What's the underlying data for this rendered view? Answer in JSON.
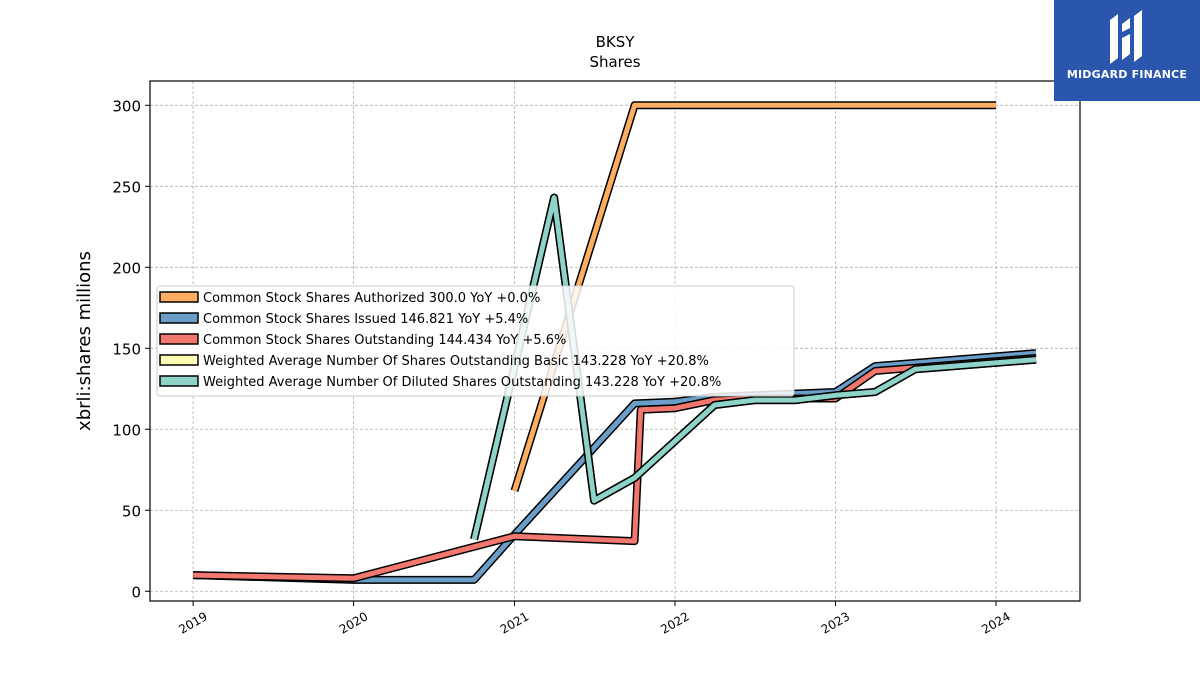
{
  "brand": {
    "name": "MIDGARD FINANCE",
    "color": "#2a57ad"
  },
  "chart_data": {
    "type": "line",
    "title": "BKSY",
    "subtitle": "Shares",
    "xlabel": "",
    "ylabel": "xbrli:shares millions",
    "x_ticks": [
      "2019",
      "2020",
      "2021",
      "2022",
      "2023",
      "2024"
    ],
    "y_ticks": [
      0,
      50,
      100,
      150,
      200,
      250,
      300
    ],
    "xlim": [
      "2018-09-25",
      "2024-07-10"
    ],
    "ylim": [
      -6,
      315
    ],
    "grid": true,
    "legend_position": "center-left",
    "series": [
      {
        "name": "Common Stock Shares Authorized",
        "legend_label": "Common Stock Shares Authorized  300.0 YoY +0.0%",
        "color": "#fdae61",
        "points": [
          [
            "2021-01-01",
            62
          ],
          [
            "2021-10-01",
            300
          ],
          [
            "2024-01-01",
            300
          ]
        ]
      },
      {
        "name": "Common Stock Shares Issued",
        "legend_label": "Common Stock Shares Issued  146.821 YoY +5.4%",
        "color": "#6a9ec9",
        "points": [
          [
            "2019-01-01",
            10
          ],
          [
            "2020-01-01",
            7
          ],
          [
            "2020-10-01",
            7
          ],
          [
            "2021-01-01",
            35
          ],
          [
            "2021-10-01",
            116
          ],
          [
            "2022-01-01",
            117
          ],
          [
            "2022-04-01",
            120
          ],
          [
            "2022-07-01",
            121
          ],
          [
            "2022-10-01",
            122
          ],
          [
            "2023-01-01",
            123
          ],
          [
            "2023-04-01",
            139
          ],
          [
            "2024-04-01",
            147
          ]
        ]
      },
      {
        "name": "Common Stock Shares Outstanding",
        "legend_label": "Common Stock Shares Outstanding  144.434 YoY +5.6%",
        "color": "#f2776e",
        "points": [
          [
            "2019-01-01",
            10
          ],
          [
            "2020-01-01",
            8
          ],
          [
            "2021-01-01",
            34
          ],
          [
            "2021-10-01",
            31
          ],
          [
            "2021-10-15",
            112
          ],
          [
            "2022-01-01",
            113
          ],
          [
            "2022-04-01",
            118
          ],
          [
            "2022-07-01",
            119
          ],
          [
            "2022-10-01",
            119
          ],
          [
            "2023-01-01",
            119
          ],
          [
            "2023-04-01",
            136
          ],
          [
            "2024-04-01",
            144
          ]
        ]
      },
      {
        "name": "Weighted Average Number Of Shares Outstanding Basic",
        "legend_label": "Weighted Average Number Of Shares Outstanding Basic  143.228 YoY +20.8%",
        "color": "#ffffb3",
        "points": [
          [
            "2020-10-01",
            32
          ],
          [
            "2021-04-01",
            243
          ],
          [
            "2021-07-01",
            56
          ],
          [
            "2021-10-01",
            70
          ],
          [
            "2022-04-01",
            115
          ],
          [
            "2022-07-01",
            118
          ],
          [
            "2022-10-01",
            118
          ],
          [
            "2023-01-01",
            121
          ],
          [
            "2023-04-01",
            123
          ],
          [
            "2023-07-01",
            137
          ],
          [
            "2024-04-01",
            143
          ]
        ]
      },
      {
        "name": "Weighted Average Number Of Diluted Shares Outstanding",
        "legend_label": "Weighted Average Number Of Diluted Shares Outstanding  143.228 YoY +20.8%",
        "color": "#8dd3c7",
        "points": [
          [
            "2020-10-01",
            32
          ],
          [
            "2021-04-01",
            243
          ],
          [
            "2021-07-01",
            56
          ],
          [
            "2021-10-01",
            70
          ],
          [
            "2022-04-01",
            115
          ],
          [
            "2022-07-01",
            118
          ],
          [
            "2022-10-01",
            118
          ],
          [
            "2023-01-01",
            121
          ],
          [
            "2023-04-01",
            123
          ],
          [
            "2023-07-01",
            137
          ],
          [
            "2024-04-01",
            143
          ]
        ]
      }
    ]
  }
}
